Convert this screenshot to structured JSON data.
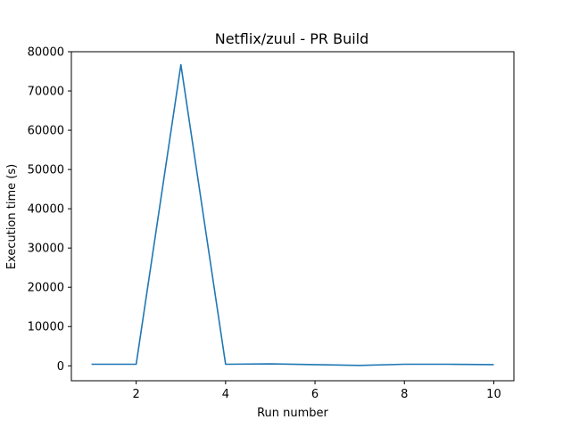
{
  "chart_data": {
    "type": "line",
    "title": "Netflix/zuul - PR Build",
    "xlabel": "Run number",
    "ylabel": "Execution time (s)",
    "xlim": [
      0.55,
      10.45
    ],
    "ylim": [
      -3800,
      80000
    ],
    "xticks": [
      2,
      4,
      6,
      8,
      10
    ],
    "yticks": [
      0,
      10000,
      20000,
      30000,
      40000,
      50000,
      60000,
      70000,
      80000
    ],
    "grid": false,
    "series": [
      {
        "color": "#1f77b4",
        "x": [
          1,
          2,
          3,
          4,
          5,
          6,
          7,
          8,
          9,
          10
        ],
        "y": [
          400,
          400,
          76700,
          400,
          500,
          300,
          100,
          400,
          400,
          300
        ]
      }
    ]
  }
}
